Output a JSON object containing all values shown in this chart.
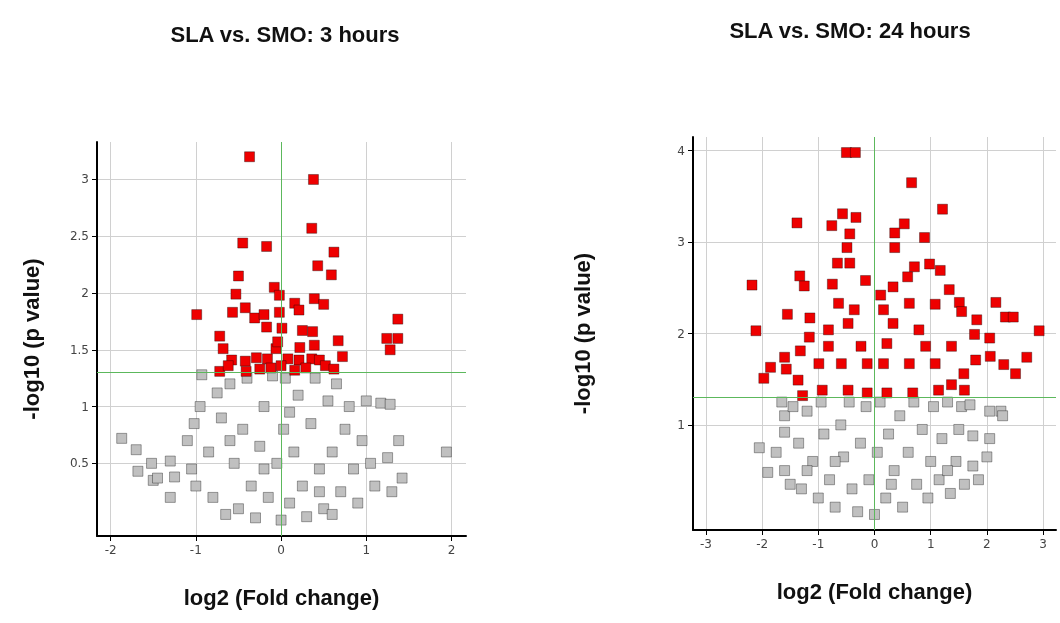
{
  "chart_data": [
    {
      "type": "scatter",
      "title": "SLA vs. SMO: 3 hours",
      "xlabel": "log2 (Fold change)",
      "ylabel": "-log10 (p value)",
      "xlim": [
        -2.16,
        2.17
      ],
      "ylim": [
        -0.14,
        3.33
      ],
      "xticks": [
        -2,
        -1,
        0,
        1,
        2
      ],
      "yticks": [
        0.5,
        1,
        1.5,
        2,
        2.5,
        3
      ],
      "grid": true,
      "marker": "square",
      "ref_lines": [
        {
          "axis": "x",
          "value": 0,
          "color": "#5cb85c"
        },
        {
          "axis": "y",
          "value": 1.3,
          "color": "#5cb85c"
        }
      ],
      "series": [
        {
          "color": "#c0c0c0",
          "x": [
            -1.87,
            -1.7,
            -1.68,
            -1.52,
            -1.5,
            -1.45,
            -1.3,
            -1.3,
            -1.25,
            -1.1,
            -1.05,
            -1.0,
            -1.02,
            -0.95,
            -0.93,
            -0.75,
            -0.85,
            -0.8,
            -0.7,
            -0.65,
            -0.6,
            -0.55,
            -0.5,
            -0.45,
            -0.4,
            -0.35,
            -0.3,
            -0.25,
            -0.2,
            -0.15,
            -0.1,
            -0.05,
            0,
            0.03,
            0.05,
            0.1,
            0.15,
            0.2,
            0.25,
            0.3,
            0.35,
            0.4,
            0.45,
            0.5,
            0.55,
            0.6,
            0.65,
            0.7,
            0.75,
            0.8,
            0.85,
            0.9,
            0.95,
            1.0,
            1.05,
            1.1,
            1.17,
            1.25,
            1.28,
            1.3,
            1.38,
            1.42,
            1.94,
            -0.2,
            0.1,
            -0.6,
            0.45,
            0.6
          ],
          "values": [
            0.72,
            0.62,
            0.43,
            0.5,
            0.35,
            0.37,
            0.52,
            0.2,
            0.38,
            0.7,
            0.45,
            0.3,
            0.85,
            1.0,
            1.28,
            1.12,
            0.6,
            0.2,
            0.9,
            0.05,
            1.2,
            0.5,
            0.1,
            0.8,
            1.25,
            0.3,
            0.02,
            0.65,
            1.0,
            0.2,
            1.27,
            0.5,
            0,
            0.8,
            1.25,
            0.15,
            0.6,
            1.1,
            0.3,
            0.03,
            0.85,
            1.25,
            0.45,
            0.1,
            1.05,
            0.6,
            1.2,
            0.25,
            0.8,
            1.0,
            0.45,
            0.15,
            0.7,
            1.05,
            0.5,
            0.3,
            1.03,
            0.55,
            1.02,
            0.25,
            0.7,
            0.37,
            0.6,
            0.45,
            0.95,
            0.7,
            0.25,
            0.05
          ]
        },
        {
          "color": "#ee0000",
          "x": [
            -0.37,
            0.38,
            0.36,
            -0.45,
            -0.17,
            0.62,
            0.43,
            -0.5,
            0.59,
            -0.08,
            -0.53,
            -0.02,
            0.39,
            0.5,
            0.16,
            0.21,
            -0.99,
            -0.42,
            -0.57,
            -0.31,
            -0.2,
            -0.02,
            1.37,
            1.24,
            1.37,
            1.28,
            -0.17,
            0.01,
            0.25,
            0.37,
            -0.72,
            0.67,
            0.22,
            0.39,
            -0.68,
            0.72,
            -0.58,
            -0.42,
            -0.29,
            -0.16,
            0.08,
            0.21,
            0.36,
            0.45,
            0.52,
            0.62,
            -0.72,
            -0.62,
            -0.41,
            -0.25,
            -0.12,
            0,
            0.16,
            0.29,
            -0.06,
            -0.04
          ],
          "values": [
            3.2,
            3.0,
            2.57,
            2.44,
            2.41,
            2.36,
            2.24,
            2.15,
            2.16,
            2.05,
            1.99,
            1.98,
            1.95,
            1.9,
            1.91,
            1.85,
            1.81,
            1.87,
            1.83,
            1.78,
            1.81,
            1.83,
            1.77,
            1.6,
            1.6,
            1.5,
            1.7,
            1.69,
            1.67,
            1.66,
            1.62,
            1.58,
            1.52,
            1.54,
            1.51,
            1.44,
            1.41,
            1.4,
            1.43,
            1.42,
            1.42,
            1.41,
            1.42,
            1.41,
            1.36,
            1.33,
            1.31,
            1.36,
            1.31,
            1.33,
            1.34,
            1.36,
            1.32,
            1.34,
            1.51,
            1.57
          ]
        }
      ]
    },
    {
      "type": "scatter",
      "title": "SLA vs. SMO: 24 hours",
      "xlabel": "log2 (Fold change)",
      "ylabel": "-log10 (p value)",
      "xlim": [
        -3.23,
        3.23
      ],
      "ylim": [
        -0.15,
        4.15
      ],
      "xticks": [
        -3,
        -2,
        -1,
        0,
        1,
        2,
        3
      ],
      "yticks": [
        1,
        2,
        3,
        4
      ],
      "grid": true,
      "marker": "square",
      "ref_lines": [
        {
          "axis": "x",
          "value": 0,
          "color": "#5cb85c"
        },
        {
          "axis": "y",
          "value": 1.3,
          "color": "#5cb85c"
        }
      ],
      "series": [
        {
          "color": "#c0c0c0",
          "x": [
            -2.05,
            -1.9,
            -1.75,
            -1.6,
            -1.6,
            -1.6,
            -1.65,
            -1.45,
            -1.5,
            -1.35,
            -1.3,
            -1.2,
            -1.1,
            -1.0,
            -0.95,
            -0.9,
            -0.8,
            -0.7,
            -0.6,
            -0.55,
            -0.45,
            -0.4,
            -0.3,
            -0.25,
            -0.15,
            -0.1,
            0,
            0.05,
            0.1,
            0.2,
            0.25,
            0.35,
            0.45,
            0.5,
            0.6,
            0.7,
            0.75,
            0.85,
            0.95,
            1.0,
            1.05,
            1.15,
            1.2,
            1.3,
            1.35,
            1.45,
            1.5,
            1.55,
            1.6,
            1.75,
            1.75,
            1.7,
            1.85,
            2.0,
            2.05,
            2.05,
            2.25,
            2.28,
            -0.7,
            0.3,
            -1.2,
            1.3
          ],
          "values": [
            0.75,
            0.48,
            0.7,
            0.5,
            0.92,
            1.1,
            1.25,
            1.2,
            0.35,
            0.8,
            0.3,
            1.15,
            0.6,
            0.2,
            1.25,
            0.9,
            0.4,
            0.1,
            1.0,
            0.65,
            1.25,
            0.3,
            0.05,
            0.8,
            1.2,
            0.4,
            0.02,
            0.7,
            1.25,
            0.2,
            0.9,
            0.5,
            1.1,
            0.1,
            0.7,
            1.25,
            0.35,
            0.95,
            0.2,
            0.6,
            1.2,
            0.4,
            0.85,
            1.25,
            0.25,
            0.6,
            0.95,
            1.2,
            0.35,
            0.55,
            0.88,
            1.22,
            0.4,
            0.65,
            0.85,
            1.15,
            1.15,
            1.1,
            0.6,
            0.35,
            0.5,
            0.5
          ]
        },
        {
          "color": "#ee0000",
          "x": [
            -0.5,
            -0.34,
            0.66,
            1.21,
            -0.57,
            -0.33,
            -1.38,
            -0.76,
            0.53,
            -0.44,
            0.36,
            0.89,
            -0.49,
            0.36,
            -0.66,
            -0.44,
            0.98,
            0.71,
            1.17,
            -1.33,
            0.59,
            -0.16,
            -2.18,
            -1.25,
            -0.75,
            1.33,
            0.11,
            -0.64,
            1.08,
            1.51,
            2.16,
            -1.55,
            1.55,
            2.33,
            2.47,
            -1.15,
            1.82,
            -2.11,
            2.93,
            1.78,
            2.05,
            -1.16,
            -0.82,
            -0.47,
            0.33,
            0.79,
            1.37,
            -1.32,
            -1.6,
            2.06,
            2.71,
            1.8,
            -1.85,
            -1.57,
            2.3,
            2.51,
            -1.97,
            -1.36,
            1.59,
            1.37,
            -1.28,
            1.6,
            -0.99,
            -0.59,
            -0.13,
            0.16,
            0.62,
            1.08,
            -0.93,
            -0.47,
            -0.13,
            0.22,
            0.68,
            1.14,
            -0.82,
            -0.24,
            0.22,
            0.91,
            -0.36,
            0.33,
            0.16,
            0.62
          ],
          "values": [
            3.98,
            3.98,
            3.65,
            3.36,
            3.31,
            3.27,
            3.21,
            3.18,
            3.2,
            3.09,
            3.1,
            3.05,
            2.94,
            2.94,
            2.77,
            2.77,
            2.76,
            2.73,
            2.69,
            2.63,
            2.62,
            2.58,
            2.53,
            2.52,
            2.54,
            2.48,
            2.42,
            2.33,
            2.32,
            2.34,
            2.34,
            2.21,
            2.24,
            2.18,
            2.18,
            2.17,
            2.15,
            2.03,
            2.03,
            1.99,
            1.95,
            1.96,
            2.04,
            2.11,
            2.11,
            2.04,
            1.86,
            1.81,
            1.74,
            1.75,
            1.74,
            1.71,
            1.63,
            1.61,
            1.66,
            1.56,
            1.51,
            1.49,
            1.56,
            1.44,
            1.32,
            1.38,
            1.67,
            1.67,
            1.67,
            1.67,
            1.67,
            1.67,
            1.38,
            1.38,
            1.35,
            1.35,
            1.35,
            1.38,
            1.86,
            1.86,
            1.89,
            1.86,
            2.26,
            2.51,
            2.26,
            2.33
          ]
        }
      ]
    }
  ]
}
